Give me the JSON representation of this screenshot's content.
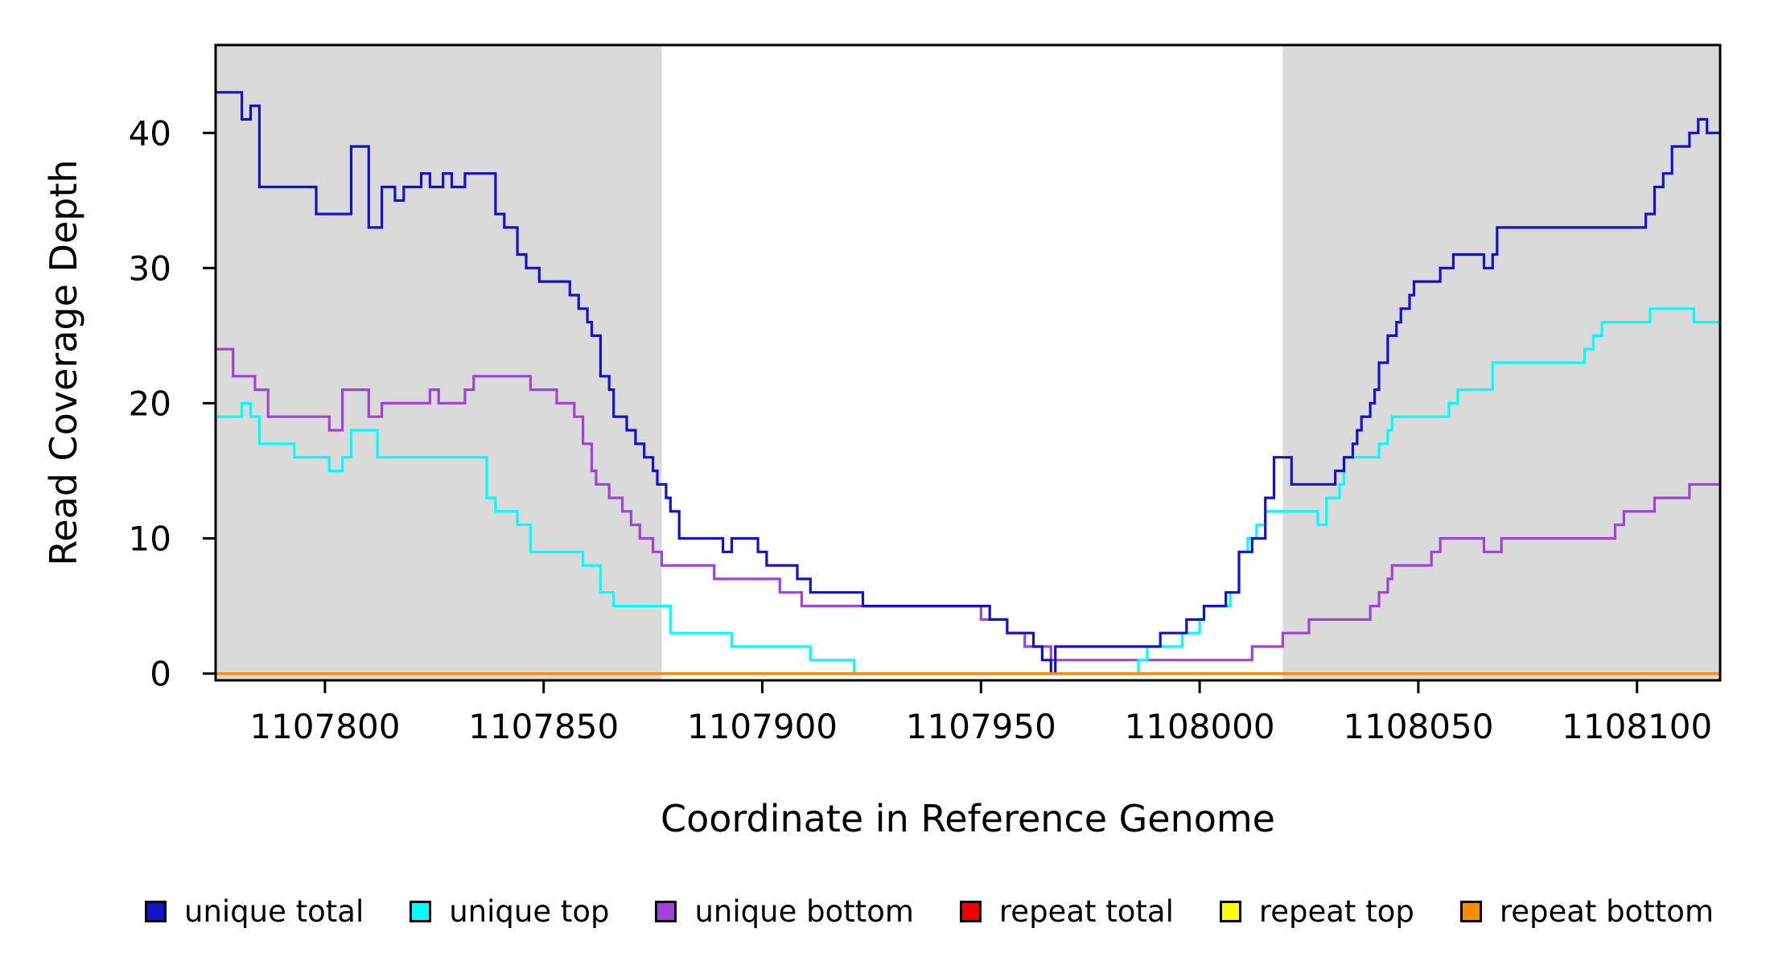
{
  "figure": {
    "background": "#ffffff",
    "shade_color": "#DADADA",
    "axis_color": "#000000"
  },
  "chart_data": {
    "type": "line",
    "step": true,
    "title": "",
    "xlabel": "Coordinate in Reference Genome",
    "ylabel": "Read Coverage Depth",
    "xlim": [
      1107775,
      1108119
    ],
    "ylim": [
      -0.5,
      46.5
    ],
    "x_ticks": [
      1107800,
      1107850,
      1107900,
      1107950,
      1108000,
      1108050,
      1108100
    ],
    "y_ticks": [
      0,
      10,
      20,
      30,
      40
    ],
    "grid": false,
    "legend_position": "bottom",
    "shaded_regions": [
      {
        "from": 1107775,
        "to": 1107877,
        "color": "#DADADA"
      },
      {
        "from": 1108019,
        "to": 1108119,
        "color": "#DADADA"
      }
    ],
    "series": [
      {
        "name": "unique bottom",
        "color": "#A042D8",
        "points": [
          [
            1107775,
            24
          ],
          [
            1107779,
            22
          ],
          [
            1107784,
            21
          ],
          [
            1107787,
            19
          ],
          [
            1107801,
            18
          ],
          [
            1107804,
            21
          ],
          [
            1107810,
            19
          ],
          [
            1107813,
            20
          ],
          [
            1107824,
            21
          ],
          [
            1107826,
            20
          ],
          [
            1107832,
            21
          ],
          [
            1107834,
            22
          ],
          [
            1107847,
            21
          ],
          [
            1107853,
            20
          ],
          [
            1107857,
            19
          ],
          [
            1107859,
            17
          ],
          [
            1107861,
            15
          ],
          [
            1107862,
            14
          ],
          [
            1107865,
            13
          ],
          [
            1107868,
            12
          ],
          [
            1107870,
            11
          ],
          [
            1107872,
            10
          ],
          [
            1107875,
            9
          ],
          [
            1107877,
            8
          ],
          [
            1107889,
            7
          ],
          [
            1107904,
            6
          ],
          [
            1107909,
            5
          ],
          [
            1107950,
            4
          ],
          [
            1107956,
            3
          ],
          [
            1107960,
            2
          ],
          [
            1107966,
            1
          ],
          [
            1108012,
            2
          ],
          [
            1108019,
            3
          ],
          [
            1108025,
            4
          ],
          [
            1108039,
            5
          ],
          [
            1108041,
            6
          ],
          [
            1108043,
            7
          ],
          [
            1108044,
            8
          ],
          [
            1108053,
            9
          ],
          [
            1108055,
            10
          ],
          [
            1108065,
            9
          ],
          [
            1108069,
            10
          ],
          [
            1108095,
            11
          ],
          [
            1108097,
            12
          ],
          [
            1108104,
            13
          ],
          [
            1108112,
            14
          ],
          [
            1108119,
            14
          ]
        ]
      },
      {
        "name": "unique top",
        "color": "#00FFFF",
        "points": [
          [
            1107775,
            19
          ],
          [
            1107781,
            20
          ],
          [
            1107783,
            19
          ],
          [
            1107785,
            17
          ],
          [
            1107793,
            16
          ],
          [
            1107801,
            15
          ],
          [
            1107804,
            16
          ],
          [
            1107806,
            18
          ],
          [
            1107812,
            16
          ],
          [
            1107837,
            13
          ],
          [
            1107839,
            12
          ],
          [
            1107844,
            11
          ],
          [
            1107847,
            9
          ],
          [
            1107859,
            8
          ],
          [
            1107863,
            6
          ],
          [
            1107866,
            5
          ],
          [
            1107879,
            3
          ],
          [
            1107893,
            2
          ],
          [
            1107911,
            1
          ],
          [
            1107921,
            0
          ],
          [
            1107986,
            1
          ],
          [
            1107988,
            2
          ],
          [
            1107996,
            3
          ],
          [
            1108000,
            4
          ],
          [
            1108001,
            5
          ],
          [
            1108007,
            6
          ],
          [
            1108009,
            9
          ],
          [
            1108011,
            10
          ],
          [
            1108013,
            11
          ],
          [
            1108015,
            12
          ],
          [
            1108027,
            11
          ],
          [
            1108029,
            13
          ],
          [
            1108032,
            14
          ],
          [
            1108033,
            16
          ],
          [
            1108041,
            17
          ],
          [
            1108043,
            18
          ],
          [
            1108044,
            19
          ],
          [
            1108057,
            20
          ],
          [
            1108059,
            21
          ],
          [
            1108067,
            23
          ],
          [
            1108088,
            24
          ],
          [
            1108090,
            25
          ],
          [
            1108092,
            26
          ],
          [
            1108103,
            27
          ],
          [
            1108113,
            26
          ],
          [
            1108119,
            26
          ]
        ]
      },
      {
        "name": "unique total",
        "color": "#1212CC",
        "points": [
          [
            1107775,
            43
          ],
          [
            1107781,
            41
          ],
          [
            1107783,
            42
          ],
          [
            1107785,
            36
          ],
          [
            1107798,
            34
          ],
          [
            1107806,
            39
          ],
          [
            1107810,
            33
          ],
          [
            1107813,
            36
          ],
          [
            1107816,
            35
          ],
          [
            1107818,
            36
          ],
          [
            1107822,
            37
          ],
          [
            1107824,
            36
          ],
          [
            1107827,
            37
          ],
          [
            1107829,
            36
          ],
          [
            1107832,
            37
          ],
          [
            1107839,
            34
          ],
          [
            1107841,
            33
          ],
          [
            1107844,
            31
          ],
          [
            1107846,
            30
          ],
          [
            1107849,
            29
          ],
          [
            1107856,
            28
          ],
          [
            1107858,
            27
          ],
          [
            1107860,
            26
          ],
          [
            1107861,
            25
          ],
          [
            1107863,
            22
          ],
          [
            1107865,
            21
          ],
          [
            1107866,
            19
          ],
          [
            1107869,
            18
          ],
          [
            1107871,
            17
          ],
          [
            1107873,
            16
          ],
          [
            1107875,
            15
          ],
          [
            1107876,
            14
          ],
          [
            1107878,
            13
          ],
          [
            1107879,
            12
          ],
          [
            1107881,
            10
          ],
          [
            1107891,
            9
          ],
          [
            1107893,
            10
          ],
          [
            1107899,
            9
          ],
          [
            1107901,
            8
          ],
          [
            1107908,
            7
          ],
          [
            1107911,
            6
          ],
          [
            1107923,
            5
          ],
          [
            1107952,
            4
          ],
          [
            1107956,
            3
          ],
          [
            1107962,
            2
          ],
          [
            1107964,
            1
          ],
          [
            1107966,
            0
          ],
          [
            1107967,
            2
          ],
          [
            1107991,
            3
          ],
          [
            1107997,
            4
          ],
          [
            1108001,
            5
          ],
          [
            1108006,
            6
          ],
          [
            1108009,
            9
          ],
          [
            1108012,
            10
          ],
          [
            1108015,
            13
          ],
          [
            1108017,
            16
          ],
          [
            1108021,
            14
          ],
          [
            1108031,
            15
          ],
          [
            1108033,
            16
          ],
          [
            1108035,
            17
          ],
          [
            1108036,
            18
          ],
          [
            1108037,
            19
          ],
          [
            1108039,
            20
          ],
          [
            1108040,
            21
          ],
          [
            1108041,
            23
          ],
          [
            1108043,
            25
          ],
          [
            1108045,
            26
          ],
          [
            1108046,
            27
          ],
          [
            1108048,
            28
          ],
          [
            1108049,
            29
          ],
          [
            1108055,
            30
          ],
          [
            1108058,
            31
          ],
          [
            1108065,
            30
          ],
          [
            1108067,
            31
          ],
          [
            1108068,
            33
          ],
          [
            1108102,
            34
          ],
          [
            1108104,
            36
          ],
          [
            1108106,
            37
          ],
          [
            1108108,
            39
          ],
          [
            1108112,
            40
          ],
          [
            1108114,
            41
          ],
          [
            1108116,
            40
          ],
          [
            1108119,
            40
          ]
        ]
      },
      {
        "name": "repeat total",
        "color": "#EE0000",
        "points": [
          [
            1107775,
            0
          ],
          [
            1108119,
            0
          ]
        ]
      },
      {
        "name": "repeat top",
        "color": "#FFFF00",
        "points": [
          [
            1107775,
            0
          ],
          [
            1108119,
            0
          ]
        ]
      },
      {
        "name": "repeat bottom",
        "color": "#FF8C00",
        "points": [
          [
            1107775,
            0
          ],
          [
            1108119,
            0
          ]
        ]
      }
    ]
  },
  "legend": {
    "items": [
      {
        "label": "unique total",
        "color": "#1212CC"
      },
      {
        "label": "unique top",
        "color": "#00FFFF"
      },
      {
        "label": "unique bottom",
        "color": "#A042D8"
      },
      {
        "label": "repeat total",
        "color": "#EE0000"
      },
      {
        "label": "repeat top",
        "color": "#FFFF00"
      },
      {
        "label": "repeat bottom",
        "color": "#FF8C00"
      }
    ]
  }
}
